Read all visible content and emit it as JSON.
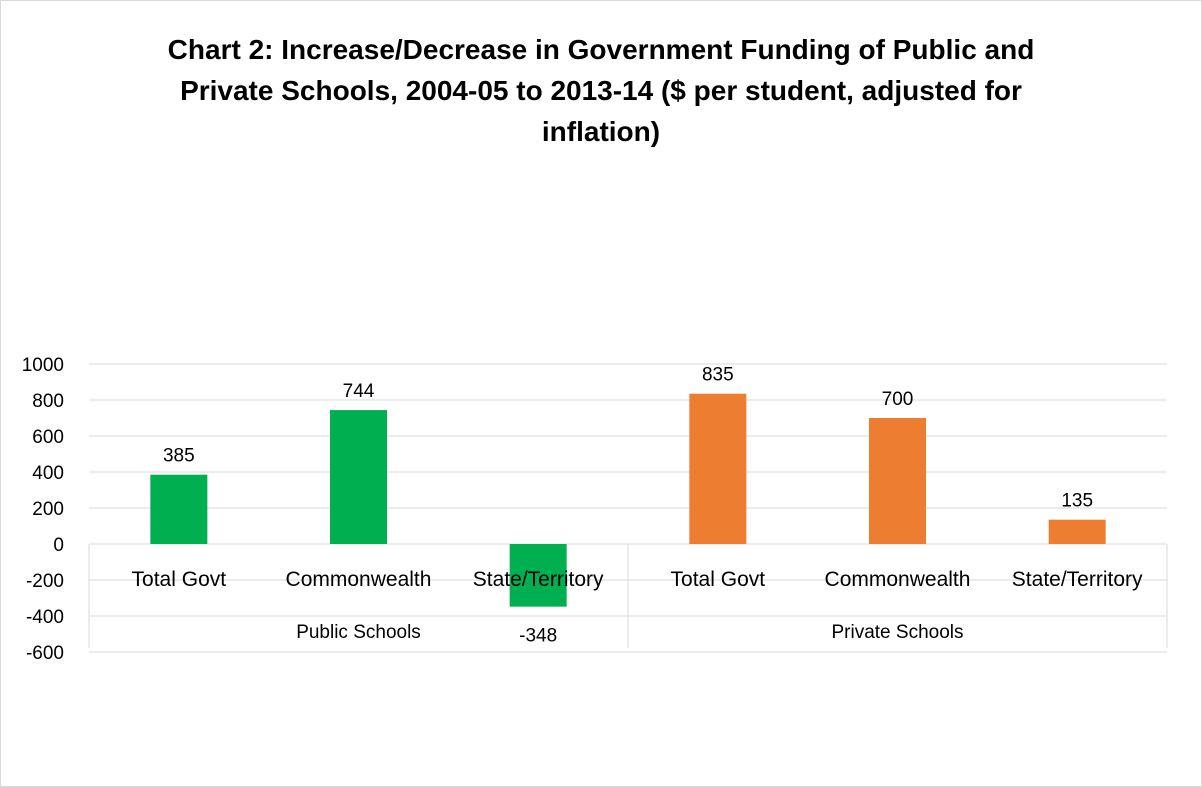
{
  "chart_data": {
    "type": "bar",
    "title": "Chart 2: Increase/Decrease in Government Funding of Public and Private Schools, 2004-05 to 2013-14 ($ per student, adjusted for inflation)",
    "title_lines": [
      "Chart 2: Increase/Decrease in Government Funding of Public and",
      "Private Schools, 2004-05 to 2013-14 ($ per student, adjusted for",
      "inflation)"
    ],
    "ylim": [
      -600,
      1000
    ],
    "yticks": [
      1000,
      800,
      600,
      400,
      200,
      0,
      -200,
      -400,
      -600
    ],
    "grid": true,
    "groups": [
      {
        "name": "Public Schools",
        "color": "#00b050",
        "categories": [
          "Total Govt",
          "Commonwealth",
          "State/Territory"
        ],
        "values": [
          385,
          744,
          -348
        ]
      },
      {
        "name": "Private Schools",
        "color": "#ed7d31",
        "categories": [
          "Total Govt",
          "Commonwealth",
          "State/Territory"
        ],
        "values": [
          835,
          700,
          135
        ]
      }
    ]
  }
}
